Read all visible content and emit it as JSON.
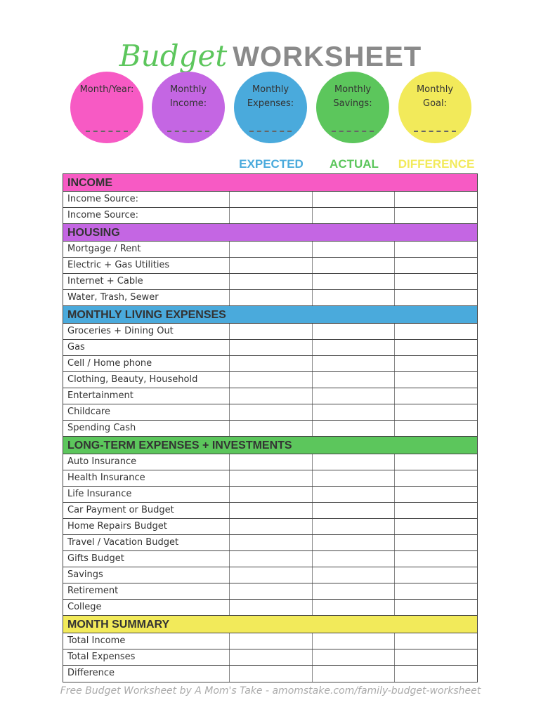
{
  "title": {
    "script": "Budget",
    "bold": "WORKSHEET"
  },
  "circles": [
    {
      "label": "Month/Year:",
      "color": "#f75ac4"
    },
    {
      "label": "Monthly Income:",
      "color": "#c466e3"
    },
    {
      "label": "Monthly Expenses:",
      "color": "#4aaadc"
    },
    {
      "label": "Monthly Savings:",
      "color": "#5cc65c"
    },
    {
      "label": "Monthly Goal:",
      "color": "#f2ea5a"
    }
  ],
  "columns": [
    {
      "label": "EXPECTED",
      "color": "#4aaadc"
    },
    {
      "label": "ACTUAL",
      "color": "#5cc65c"
    },
    {
      "label": "DIFFERENCE",
      "color": "#f2ea5a"
    }
  ],
  "sections": [
    {
      "title": "INCOME",
      "color": "#f75ac4",
      "items": [
        "Income Source:",
        "Income Source:"
      ]
    },
    {
      "title": "HOUSING",
      "color": "#c466e3",
      "items": [
        "Mortgage / Rent",
        "Electric + Gas Utilities",
        "Internet + Cable",
        "Water, Trash, Sewer"
      ]
    },
    {
      "title": "MONTHLY LIVING EXPENSES",
      "color": "#4aaadc",
      "items": [
        "Groceries + Dining Out",
        "Gas",
        "Cell / Home phone",
        "Clothing, Beauty, Household",
        "Entertainment",
        "Childcare",
        "Spending Cash"
      ]
    },
    {
      "title": "LONG-TERM EXPENSES + INVESTMENTS",
      "color": "#5cc65c",
      "items": [
        "Auto Insurance",
        "Health Insurance",
        "Life Insurance",
        "Car Payment or Budget",
        "Home Repairs Budget",
        "Travel / Vacation Budget",
        "Gifts Budget",
        "Savings",
        "Retirement",
        "College"
      ]
    },
    {
      "title": "MONTH SUMMARY",
      "color": "#f2ea5a",
      "items": [
        "Total Income",
        "Total Expenses",
        "Difference"
      ]
    }
  ],
  "footer": "Free Budget Worksheet by A Mom's Take - amomstake.com/family-budget-worksheet"
}
